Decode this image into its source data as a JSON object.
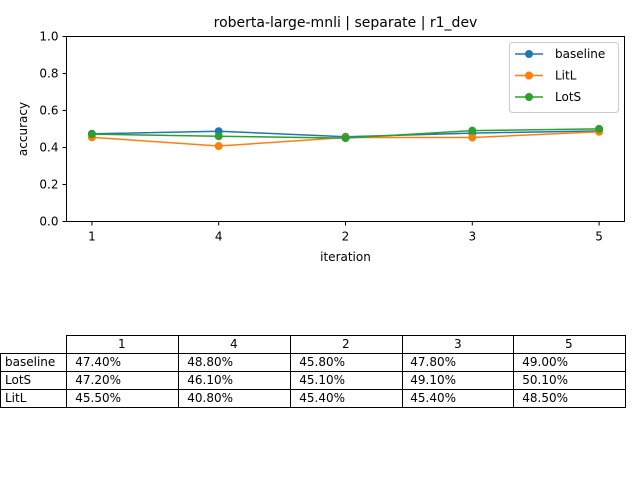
{
  "chart_data": {
    "type": "line",
    "title": "roberta-large-mnli | separate | r1_dev",
    "xlabel": "iteration",
    "ylabel": "accuracy",
    "categories": [
      "1",
      "4",
      "2",
      "3",
      "5"
    ],
    "ylim": [
      0,
      1.0
    ],
    "yticks": [
      "0.0",
      "0.2",
      "0.4",
      "0.6",
      "0.8",
      "1.0"
    ],
    "grid": false,
    "legend_position": "top-right",
    "series": [
      {
        "name": "baseline",
        "color": "#1f77b4",
        "values": [
          0.474,
          0.488,
          0.458,
          0.478,
          0.49
        ]
      },
      {
        "name": "LitL",
        "color": "#ff7f0e",
        "values": [
          0.455,
          0.408,
          0.454,
          0.454,
          0.485
        ]
      },
      {
        "name": "LotS",
        "color": "#2ca02c",
        "values": [
          0.472,
          0.461,
          0.451,
          0.491,
          0.501
        ]
      }
    ]
  },
  "table": {
    "columns": [
      "1",
      "4",
      "2",
      "3",
      "5"
    ],
    "rows": [
      {
        "label": "baseline",
        "cells": [
          "47.40%",
          "48.80%",
          "45.80%",
          "47.80%",
          "49.00%"
        ]
      },
      {
        "label": "LotS",
        "cells": [
          "47.20%",
          "46.10%",
          "45.10%",
          "49.10%",
          "50.10%"
        ]
      },
      {
        "label": "LitL",
        "cells": [
          "45.50%",
          "40.80%",
          "45.40%",
          "45.40%",
          "48.50%"
        ]
      }
    ]
  }
}
